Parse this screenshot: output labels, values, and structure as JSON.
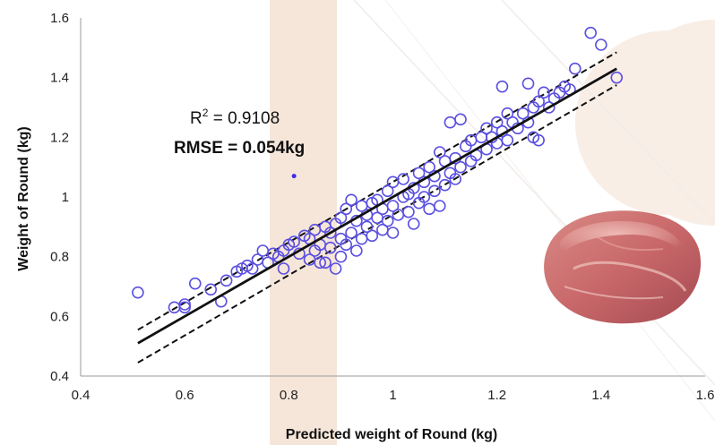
{
  "chart_data": {
    "type": "scatter",
    "title": "",
    "xlabel": "Predicted weight of Round (kg)",
    "ylabel": "Weight of Round (kg)",
    "xlim": [
      0.4,
      1.6
    ],
    "ylim": [
      0.4,
      1.6
    ],
    "xticks": [
      "0.4",
      "0.6",
      "0.8",
      "1",
      "1.2",
      "1.4",
      "1.6"
    ],
    "yticks": [
      "0.4",
      "0.6",
      "0.8",
      "1",
      "1.2",
      "1.4",
      "1.6"
    ],
    "grid": false,
    "legend": "none",
    "annotations": {
      "r2_prefix": "R",
      "r2_sup": "2",
      "r2_value": " = 0.9108",
      "rmse": "RMSE  = 0.054kg"
    },
    "regression_line": {
      "x": [
        0.51,
        1.43
      ],
      "y": [
        0.51,
        1.43
      ]
    },
    "upper_band": {
      "x": [
        0.51,
        1.43
      ],
      "y": [
        0.555,
        1.485
      ]
    },
    "lower_band": {
      "x": [
        0.51,
        1.43
      ],
      "y": [
        0.445,
        1.375
      ]
    },
    "series": [
      {
        "marker": "open-circle",
        "color": "#5a4fe0",
        "points": [
          [
            0.51,
            0.68
          ],
          [
            0.58,
            0.63
          ],
          [
            0.6,
            0.63
          ],
          [
            0.6,
            0.64
          ],
          [
            0.62,
            0.71
          ],
          [
            0.65,
            0.69
          ],
          [
            0.67,
            0.65
          ],
          [
            0.68,
            0.72
          ],
          [
            0.7,
            0.75
          ],
          [
            0.71,
            0.76
          ],
          [
            0.72,
            0.77
          ],
          [
            0.73,
            0.76
          ],
          [
            0.74,
            0.79
          ],
          [
            0.75,
            0.82
          ],
          [
            0.76,
            0.78
          ],
          [
            0.77,
            0.81
          ],
          [
            0.78,
            0.8
          ],
          [
            0.79,
            0.82
          ],
          [
            0.79,
            0.76
          ],
          [
            0.8,
            0.84
          ],
          [
            0.81,
            0.85
          ],
          [
            0.82,
            0.81
          ],
          [
            0.83,
            0.87
          ],
          [
            0.84,
            0.79
          ],
          [
            0.84,
            0.86
          ],
          [
            0.85,
            0.82
          ],
          [
            0.85,
            0.89
          ],
          [
            0.86,
            0.78
          ],
          [
            0.86,
            0.84
          ],
          [
            0.87,
            0.9
          ],
          [
            0.87,
            0.78
          ],
          [
            0.88,
            0.88
          ],
          [
            0.88,
            0.83
          ],
          [
            0.89,
            0.91
          ],
          [
            0.89,
            0.76
          ],
          [
            0.9,
            0.86
          ],
          [
            0.9,
            0.93
          ],
          [
            0.9,
            0.8
          ],
          [
            0.91,
            0.96
          ],
          [
            0.91,
            0.84
          ],
          [
            0.92,
            0.99
          ],
          [
            0.92,
            0.88
          ],
          [
            0.93,
            0.92
          ],
          [
            0.93,
            0.82
          ],
          [
            0.94,
            0.97
          ],
          [
            0.94,
            0.86
          ],
          [
            0.95,
            0.94
          ],
          [
            0.95,
            0.9
          ],
          [
            0.96,
            0.98
          ],
          [
            0.96,
            0.87
          ],
          [
            0.97,
            0.93
          ],
          [
            0.97,
            0.99
          ],
          [
            0.98,
            0.89
          ],
          [
            0.98,
            0.96
          ],
          [
            0.99,
            1.02
          ],
          [
            0.99,
            0.92
          ],
          [
            1.0,
            0.97
          ],
          [
            1.0,
            1.05
          ],
          [
            1.0,
            0.88
          ],
          [
            1.01,
            0.94
          ],
          [
            1.02,
            1.0
          ],
          [
            1.02,
            1.06
          ],
          [
            1.03,
            0.95
          ],
          [
            1.03,
            1.01
          ],
          [
            1.04,
            0.91
          ],
          [
            1.04,
            1.03
          ],
          [
            1.05,
            0.98
          ],
          [
            1.05,
            1.08
          ],
          [
            1.06,
            1.0
          ],
          [
            1.06,
            1.05
          ],
          [
            1.07,
            0.96
          ],
          [
            1.07,
            1.1
          ],
          [
            1.08,
            1.02
          ],
          [
            1.08,
            1.07
          ],
          [
            1.09,
            0.97
          ],
          [
            1.09,
            1.15
          ],
          [
            1.1,
            1.04
          ],
          [
            1.1,
            1.12
          ],
          [
            1.11,
            1.25
          ],
          [
            1.11,
            1.08
          ],
          [
            1.12,
            1.13
          ],
          [
            1.12,
            1.06
          ],
          [
            1.13,
            1.26
          ],
          [
            1.13,
            1.1
          ],
          [
            1.14,
            1.17
          ],
          [
            1.15,
            1.12
          ],
          [
            1.15,
            1.19
          ],
          [
            1.16,
            1.14
          ],
          [
            1.17,
            1.2
          ],
          [
            1.18,
            1.16
          ],
          [
            1.18,
            1.23
          ],
          [
            1.19,
            1.2
          ],
          [
            1.2,
            1.25
          ],
          [
            1.2,
            1.18
          ],
          [
            1.21,
            1.37
          ],
          [
            1.21,
            1.22
          ],
          [
            1.22,
            1.28
          ],
          [
            1.22,
            1.19
          ],
          [
            1.23,
            1.25
          ],
          [
            1.24,
            1.23
          ],
          [
            1.25,
            1.28
          ],
          [
            1.26,
            1.38
          ],
          [
            1.26,
            1.25
          ],
          [
            1.27,
            1.3
          ],
          [
            1.27,
            1.2
          ],
          [
            1.28,
            1.32
          ],
          [
            1.28,
            1.19
          ],
          [
            1.29,
            1.35
          ],
          [
            1.3,
            1.3
          ],
          [
            1.31,
            1.33
          ],
          [
            1.32,
            1.35
          ],
          [
            1.33,
            1.37
          ],
          [
            1.34,
            1.36
          ],
          [
            1.35,
            1.43
          ],
          [
            1.38,
            1.55
          ],
          [
            1.4,
            1.51
          ],
          [
            1.43,
            1.4
          ]
        ]
      }
    ],
    "stray_point": [
      0.81,
      1.07
    ]
  }
}
